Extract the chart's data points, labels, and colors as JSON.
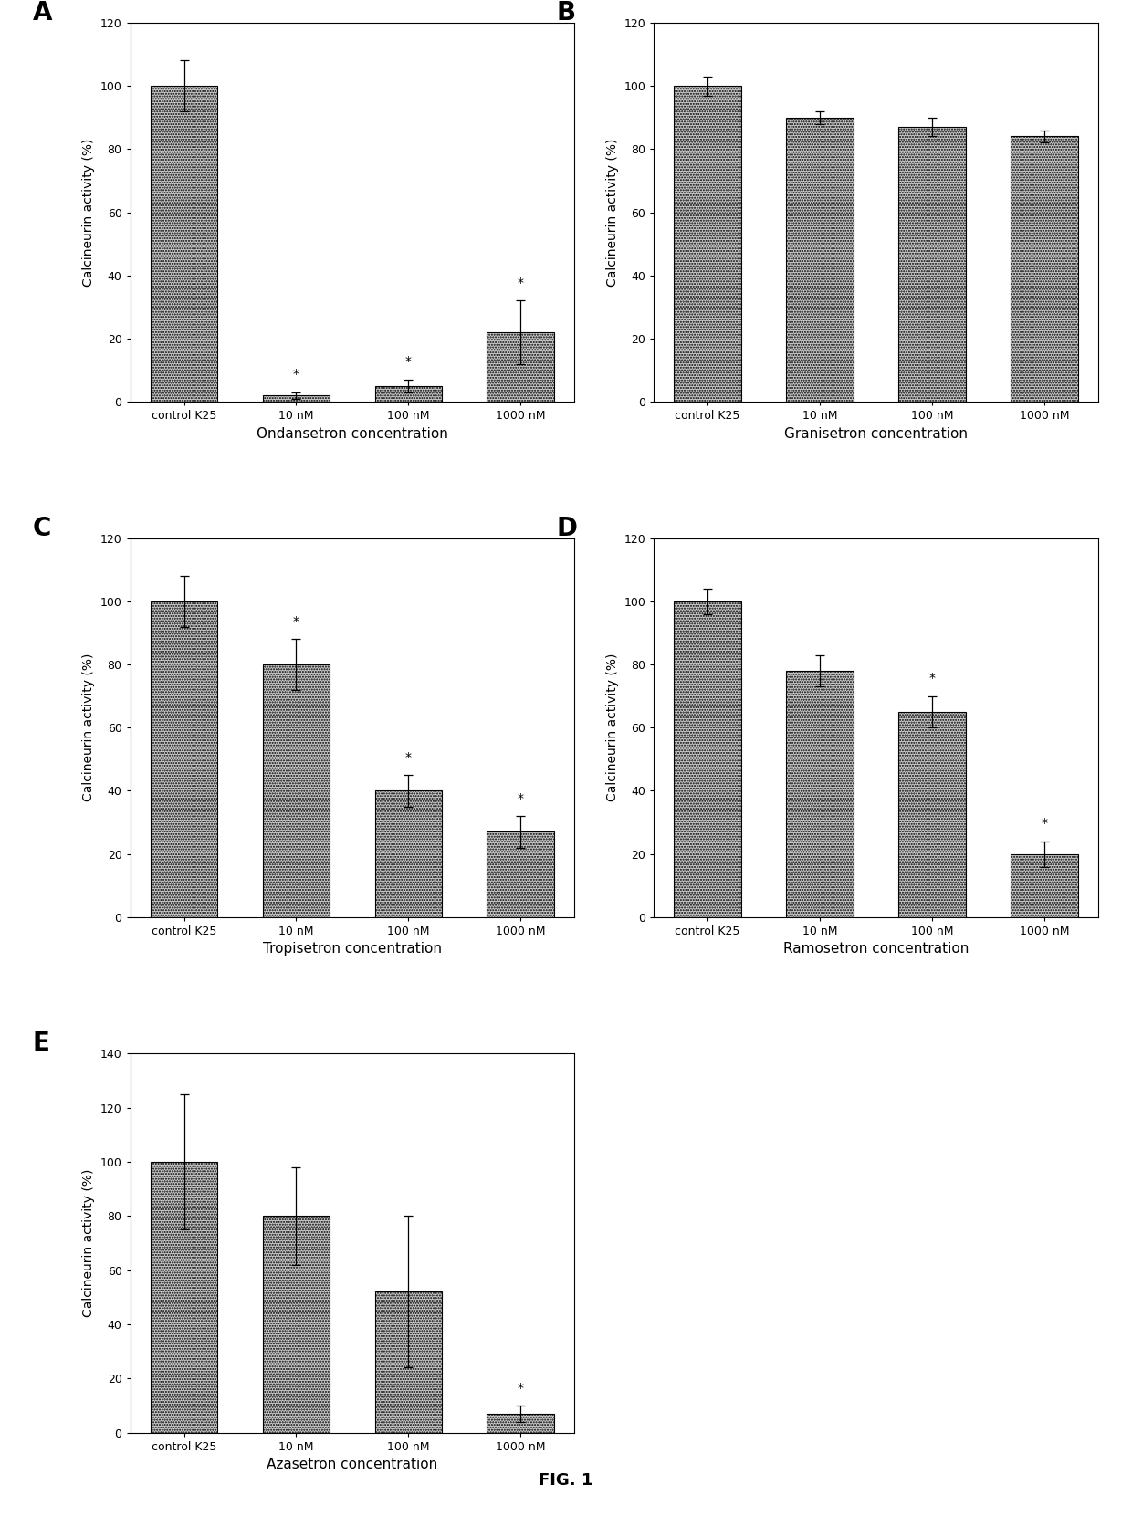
{
  "panels": [
    {
      "label": "A",
      "title": "Ondansetron concentration",
      "values": [
        100,
        2,
        5,
        22
      ],
      "errors": [
        8,
        1,
        2,
        10
      ],
      "stars": [
        false,
        true,
        true,
        true
      ],
      "ylim": [
        0,
        120
      ],
      "yticks": [
        0,
        20,
        40,
        60,
        80,
        100,
        120
      ],
      "ylabel": "Calcineurin activity (%)"
    },
    {
      "label": "B",
      "title": "Granisetron concentration",
      "values": [
        100,
        90,
        87,
        84
      ],
      "errors": [
        3,
        2,
        3,
        2
      ],
      "stars": [
        false,
        false,
        false,
        false
      ],
      "ylim": [
        0,
        120
      ],
      "yticks": [
        0,
        20,
        40,
        60,
        80,
        100,
        120
      ],
      "ylabel": "Calcineurin activity (%)"
    },
    {
      "label": "C",
      "title": "Tropisetron concentration",
      "values": [
        100,
        80,
        40,
        27
      ],
      "errors": [
        8,
        8,
        5,
        5
      ],
      "stars": [
        false,
        true,
        true,
        true
      ],
      "ylim": [
        0,
        120
      ],
      "yticks": [
        0,
        20,
        40,
        60,
        80,
        100,
        120
      ],
      "ylabel": "Calcineurin activity (%)"
    },
    {
      "label": "D",
      "title": "Ramosetron concentration",
      "values": [
        100,
        78,
        65,
        20
      ],
      "errors": [
        4,
        5,
        5,
        4
      ],
      "stars": [
        false,
        false,
        true,
        true
      ],
      "ylim": [
        0,
        120
      ],
      "yticks": [
        0,
        20,
        40,
        60,
        80,
        100,
        120
      ],
      "ylabel": "Calcineurin activity (%)"
    },
    {
      "label": "E",
      "title": "Azasetron concentration",
      "values": [
        100,
        80,
        52,
        7
      ],
      "errors": [
        25,
        18,
        28,
        3
      ],
      "stars": [
        false,
        false,
        false,
        true
      ],
      "ylim": [
        0,
        140
      ],
      "yticks": [
        0,
        20,
        40,
        60,
        80,
        100,
        120,
        140
      ],
      "ylabel": "Calcineurin activity (%)"
    }
  ],
  "categories": [
    "control K25",
    "10 nM",
    "100 nM",
    "1000 nM"
  ],
  "bar_color": "#c8c8c8",
  "bar_edgecolor": "#000000",
  "figsize": [
    12.4,
    16.61
  ],
  "dpi": 100,
  "fig_caption": "FIG. 1",
  "panel_label_fontsize": 20,
  "axis_label_fontsize": 10,
  "tick_fontsize": 9,
  "title_fontsize": 11,
  "caption_fontsize": 13
}
